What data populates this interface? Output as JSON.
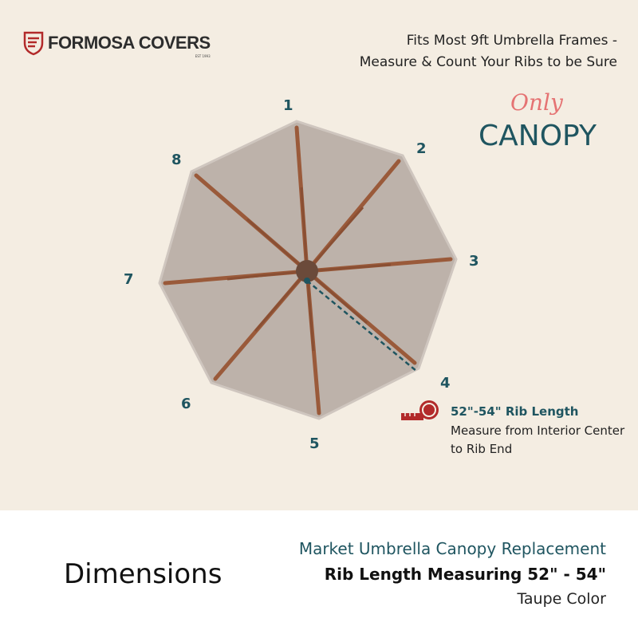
{
  "brand": {
    "name": "FORMOSA COVERS",
    "est": "EST 1993",
    "color": "#b22a2a"
  },
  "headline": {
    "line1": "Fits Most 9ft Umbrella Frames -",
    "line2": "Measure & Count Your Ribs to be Sure"
  },
  "badge": {
    "only": "Only",
    "canopy": "CANOPY"
  },
  "rib_numbers": [
    "1",
    "2",
    "3",
    "4",
    "5",
    "6",
    "7",
    "8"
  ],
  "measure": {
    "icon": "tape-measure-icon",
    "title": "52\"-54\" Rib Length",
    "description": "Measure from Interior Center to Rib End"
  },
  "footer": {
    "dimensions": "Dimensions",
    "product": "Market Umbrella Canopy Replacement",
    "rib_length": "Rib Length Measuring 52\" - 54\"",
    "color": "Taupe Color"
  },
  "colors": {
    "background": "#f4ede2",
    "accent": "#1f5560",
    "canopy": "#bdb2aa",
    "ribs": "#9a5a3a"
  }
}
